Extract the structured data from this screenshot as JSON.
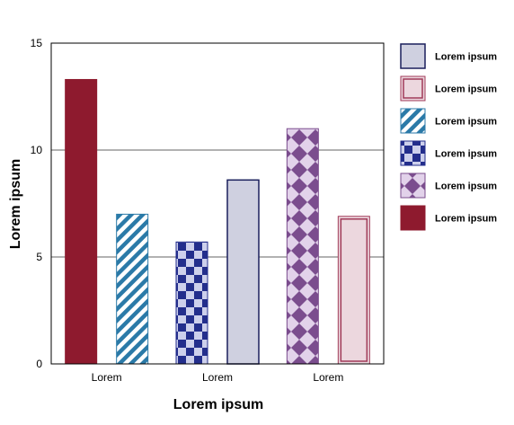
{
  "chart_data": {
    "type": "bar",
    "title": "",
    "xlabel": "Lorem ipsum",
    "ylabel": "Lorem ipsum",
    "ylim": [
      0,
      15
    ],
    "yticks": [
      0,
      5,
      10,
      15
    ],
    "grid": "horizontal",
    "legend_position": "right",
    "categories": [
      "Lorem",
      "Lorem",
      "Lorem"
    ],
    "series": [
      {
        "name": "Lorem ipsum",
        "style": "solid",
        "fill": "#8e1a2e",
        "stroke": "#8e1a2e",
        "values": [
          13.3,
          null,
          null
        ]
      },
      {
        "name": "Lorem ipsum",
        "style": "diagonal",
        "fill": "#2b7aa8",
        "stroke": "#2b7aa8",
        "values": [
          7.0,
          null,
          null
        ]
      },
      {
        "name": "Lorem ipsum",
        "style": "checker",
        "fill": "#232e8c",
        "stroke": "#232e8c",
        "values": [
          null,
          5.7,
          null
        ]
      },
      {
        "name": "Lorem ipsum",
        "style": "plain",
        "fill": "#cfd0e0",
        "stroke": "#1a1f5c",
        "values": [
          null,
          8.6,
          null
        ]
      },
      {
        "name": "Lorem ipsum",
        "style": "diamond",
        "fill": "#7b4d8e",
        "stroke": "#7b4d8e",
        "values": [
          null,
          null,
          11.0
        ]
      },
      {
        "name": "Lorem ipsum",
        "style": "framed",
        "fill": "#ecd7de",
        "stroke": "#a03a58",
        "values": [
          null,
          null,
          6.9
        ]
      }
    ],
    "legend": [
      {
        "label": "Lorem ipsum",
        "style": "plain",
        "fill": "#cfd0e0",
        "stroke": "#1a1f5c"
      },
      {
        "label": "Lorem ipsum",
        "style": "framed",
        "fill": "#ecd7de",
        "stroke": "#a03a58"
      },
      {
        "label": "Lorem ipsum",
        "style": "diagonal",
        "fill": "#2b7aa8",
        "stroke": "#2b7aa8"
      },
      {
        "label": "Lorem ipsum",
        "style": "checker",
        "fill": "#232e8c",
        "stroke": "#232e8c"
      },
      {
        "label": "Lorem ipsum",
        "style": "diamond",
        "fill": "#7b4d8e",
        "stroke": "#7b4d8e"
      },
      {
        "label": "Lorem ipsum",
        "style": "solid",
        "fill": "#8e1a2e",
        "stroke": "#8e1a2e"
      }
    ]
  }
}
